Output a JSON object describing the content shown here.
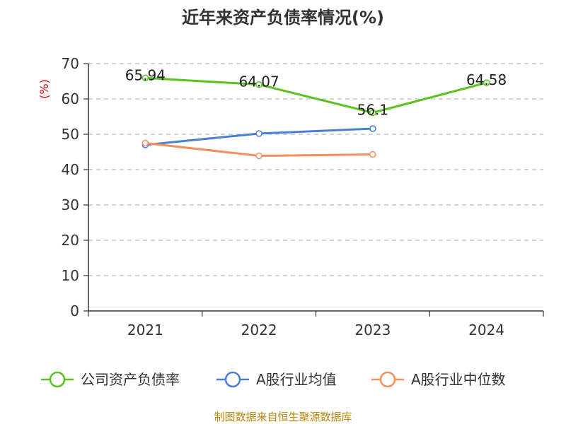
{
  "chart_data": {
    "type": "line",
    "title": "近年来资产负债率情况(%)",
    "ylabel": "(%)",
    "xlabel": "",
    "categories": [
      "2021",
      "2022",
      "2023",
      "2024"
    ],
    "ylim": [
      0,
      70
    ],
    "yticks": [
      0,
      10,
      20,
      30,
      40,
      50,
      60,
      70
    ],
    "grid": true,
    "legend_position": "bottom",
    "series": [
      {
        "name": "公司资产负债率",
        "color": "#5ac11f",
        "values": [
          65.94,
          64.07,
          56.1,
          64.58
        ],
        "labels": [
          "65.94",
          "64.07",
          "56.1",
          "64.58"
        ]
      },
      {
        "name": "A股行业均值",
        "color": "#4a7fd4",
        "values": [
          47.0,
          50.2,
          51.6,
          null
        ]
      },
      {
        "name": "A股行业中位数",
        "color": "#f5905c",
        "values": [
          47.5,
          43.9,
          44.3,
          null
        ]
      }
    ]
  },
  "source_note": "制图数据来自恒生聚源数据库"
}
